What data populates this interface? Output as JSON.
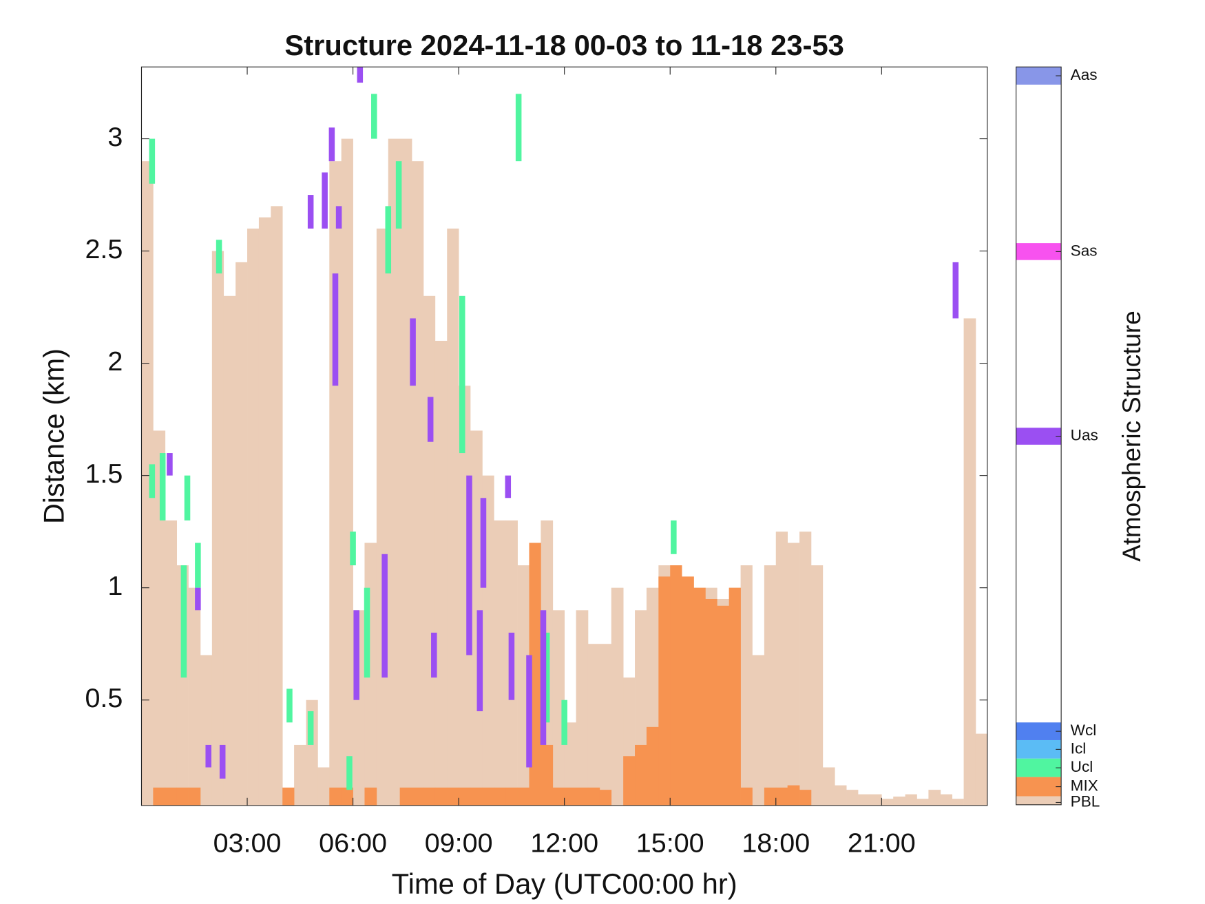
{
  "chart_data": {
    "type": "structure",
    "title": "Structure 2024-11-18 00-03 to 11-18 23-53",
    "x_label": "Time of Day (UTC00:00 hr)",
    "y_label": "Distance (km)",
    "colorbar_label": "Atmospheric Structure",
    "xlim": [
      0,
      24
    ],
    "xticks": [
      {
        "value": 3,
        "label": "03:00"
      },
      {
        "value": 6,
        "label": "06:00"
      },
      {
        "value": 9,
        "label": "09:00"
      },
      {
        "value": 12,
        "label": "12:00"
      },
      {
        "value": 15,
        "label": "15:00"
      },
      {
        "value": 18,
        "label": "18:00"
      },
      {
        "value": 21,
        "label": "21:00"
      }
    ],
    "ylim": [
      0.03,
      3.32
    ],
    "yticks": [
      0.5,
      1,
      1.5,
      2,
      2.5,
      3
    ],
    "x": [
      0,
      0.33,
      0.67,
      1,
      1.33,
      1.67,
      2,
      2.33,
      2.67,
      3,
      3.33,
      3.67,
      4,
      4.33,
      4.67,
      5,
      5.33,
      5.67,
      6,
      6.33,
      6.67,
      7,
      7.33,
      7.67,
      8,
      8.33,
      8.67,
      9,
      9.33,
      9.67,
      10,
      10.33,
      10.67,
      11,
      11.33,
      11.67,
      12,
      12.33,
      12.67,
      13,
      13.33,
      13.67,
      14,
      14.33,
      14.67,
      15,
      15.33,
      15.67,
      16,
      16.33,
      16.67,
      17,
      17.33,
      17.67,
      18,
      18.33,
      18.67,
      19,
      19.33,
      19.67,
      20,
      20.33,
      20.67,
      21,
      21.33,
      21.67,
      22,
      22.33,
      22.67,
      23,
      23.33,
      23.67
    ],
    "series": [
      {
        "name": "Aas",
        "color": "#8896e8"
      },
      {
        "name": "Sas",
        "color": "#f752ef"
      },
      {
        "name": "Uas",
        "color": "#9b4ff2",
        "seg_x": [
          0.8,
          1.6,
          1.9,
          2.3,
          4.8,
          5.2,
          5.4,
          5.5,
          5.6,
          6.1,
          6.2,
          6.9,
          7.7,
          8.2,
          8.3,
          9.3,
          9.6,
          9.7,
          10.4,
          10.5,
          11.0,
          11.4,
          23.1
        ],
        "bottom": [
          1.5,
          0.9,
          0.2,
          0.15,
          2.6,
          2.6,
          2.9,
          1.9,
          2.6,
          0.5,
          3.25,
          0.6,
          1.9,
          1.65,
          0.6,
          0.7,
          0.45,
          1.0,
          1.4,
          0.5,
          0.2,
          0.3,
          2.2
        ],
        "top": [
          1.6,
          1.0,
          0.3,
          0.3,
          2.75,
          2.85,
          3.05,
          2.4,
          2.7,
          0.9,
          3.32,
          1.15,
          2.2,
          1.85,
          0.8,
          1.5,
          0.9,
          1.4,
          1.5,
          0.8,
          0.7,
          0.9,
          2.45
        ]
      },
      {
        "name": "Wcl",
        "color": "#5080f0"
      },
      {
        "name": "Icl",
        "color": "#5bbcf5"
      },
      {
        "name": "Ucl",
        "color": "#50f5a0",
        "seg_x": [
          0.3,
          0.3,
          0.6,
          1.2,
          1.3,
          1.6,
          2.2,
          4.2,
          4.8,
          5.9,
          6.0,
          6.4,
          7.0,
          7.3,
          9.1,
          10.7,
          6.6,
          11.5,
          12.0,
          15.1
        ],
        "bottom": [
          2.8,
          1.4,
          1.3,
          0.6,
          1.3,
          1.0,
          2.4,
          0.4,
          0.3,
          0.1,
          1.1,
          0.6,
          2.4,
          2.6,
          1.6,
          2.9,
          3.0,
          0.4,
          0.3,
          1.15
        ],
        "top": [
          3.0,
          1.55,
          1.6,
          1.1,
          1.5,
          1.2,
          2.55,
          0.55,
          0.45,
          0.25,
          1.25,
          1.0,
          2.7,
          2.9,
          2.3,
          3.2,
          3.2,
          0.8,
          0.5,
          1.3
        ]
      },
      {
        "name": "MIX",
        "color": "#f79350",
        "values": [
          null,
          0.11,
          0.11,
          0.11,
          0.11,
          null,
          null,
          null,
          null,
          null,
          null,
          null,
          0.11,
          null,
          null,
          null,
          0.11,
          0.11,
          null,
          0.11,
          null,
          null,
          0.11,
          0.11,
          0.11,
          0.11,
          0.11,
          0.11,
          0.11,
          0.11,
          0.11,
          0.11,
          0.11,
          1.2,
          0.3,
          0.11,
          0.11,
          0.11,
          0.11,
          0.1,
          null,
          0.25,
          0.3,
          0.38,
          1.05,
          1.1,
          1.05,
          1.0,
          0.95,
          0.92,
          1.0,
          0.11,
          null,
          0.11,
          0.11,
          0.12,
          0.1,
          null,
          null,
          null,
          null,
          null,
          null,
          null,
          null,
          null,
          null,
          null,
          null,
          null,
          null,
          null
        ]
      },
      {
        "name": "PBL",
        "color": "#ebcdb7",
        "values": [
          2.9,
          1.7,
          1.3,
          1.1,
          1.0,
          0.7,
          2.5,
          2.3,
          2.45,
          2.6,
          2.65,
          2.7,
          0.1,
          0.3,
          0.5,
          0.2,
          2.9,
          3.0,
          0.9,
          1.2,
          2.6,
          3.0,
          3.0,
          2.9,
          2.3,
          2.1,
          2.6,
          1.9,
          1.7,
          1.5,
          1.3,
          1.3,
          1.1,
          1.2,
          1.3,
          0.9,
          0.4,
          0.9,
          0.75,
          0.75,
          1.0,
          0.6,
          0.9,
          1.0,
          1.1,
          1.1,
          1.0,
          1.0,
          1.0,
          0.95,
          1.0,
          1.1,
          0.7,
          1.1,
          1.25,
          1.2,
          1.25,
          1.1,
          0.2,
          0.12,
          0.1,
          0.08,
          0.08,
          0.06,
          0.07,
          0.08,
          0.06,
          0.1,
          0.08,
          0.06,
          2.2,
          0.35
        ]
      }
    ]
  }
}
